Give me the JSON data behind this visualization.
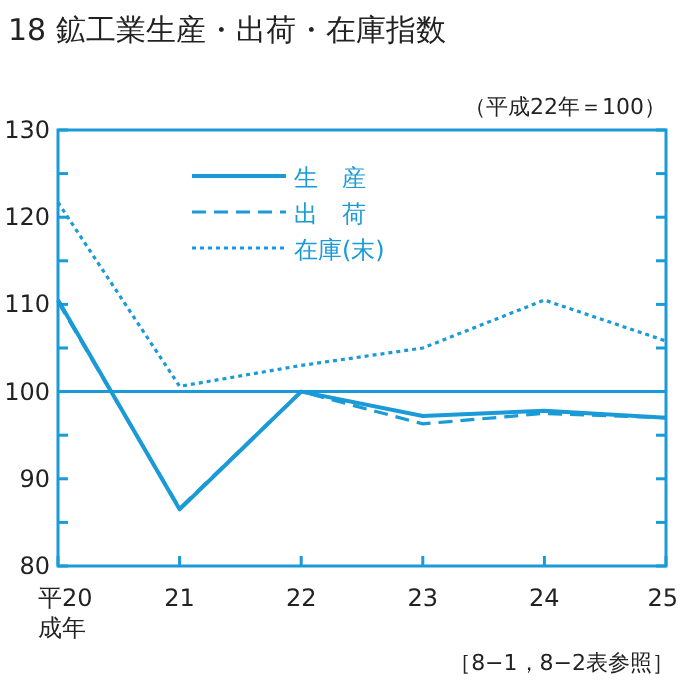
{
  "chart_data": {
    "type": "line",
    "title": "18 鉱工業生産・出荷・在庫指数",
    "categories": [
      "平20\n成年",
      "21",
      "22",
      "23",
      "24",
      "25"
    ],
    "series": [
      {
        "name": "生　産",
        "color": "#1a9ad6",
        "line_style": "solid",
        "values": [
          110.5,
          86.5,
          100,
          97.2,
          97.8,
          97.0
        ]
      },
      {
        "name": "出　荷",
        "color": "#1a9ad6",
        "line_style": "dashed",
        "values": [
          110.3,
          86.6,
          100,
          96.3,
          97.5,
          97.0
        ]
      },
      {
        "name": "在庫(末)",
        "color": "#1a9ad6",
        "line_style": "dotted",
        "values": [
          121.7,
          100.6,
          103.0,
          105.0,
          110.5,
          105.8
        ]
      }
    ],
    "ylim": [
      80,
      130
    ],
    "yticks": [
      80,
      90,
      100,
      110,
      120,
      130
    ],
    "ref_lines": [
      {
        "axis": "y",
        "value": 100,
        "color": "#1a9ad6"
      }
    ],
    "annotations": [
      "（平成22年＝100）",
      "［8−1，8−2表参照］"
    ],
    "legend": "top left",
    "grid": false,
    "marker": "none"
  }
}
